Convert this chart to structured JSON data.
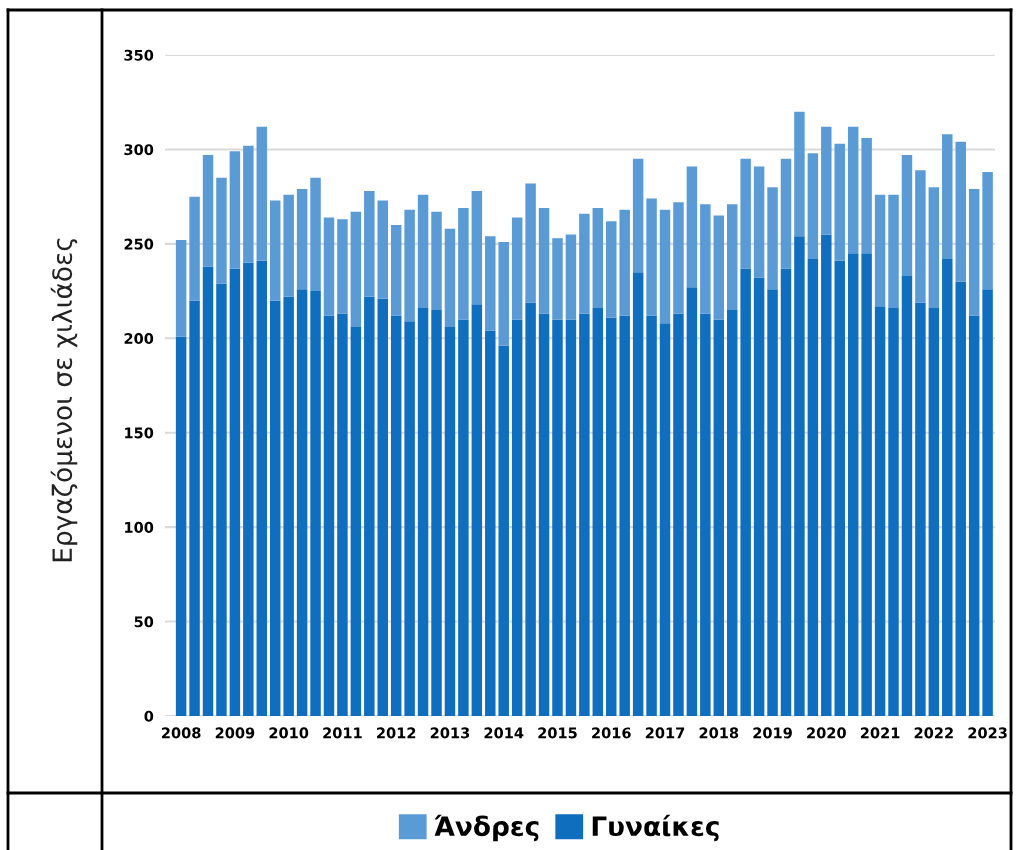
{
  "chart_data": {
    "type": "bar",
    "stacked": true,
    "ylabel": "Εργαζόμενοι σε χιλιάδες",
    "categories": [
      "2008",
      null,
      null,
      null,
      "2009",
      null,
      null,
      null,
      "2010",
      null,
      null,
      null,
      "2011",
      null,
      null,
      null,
      "2012",
      null,
      null,
      null,
      "2013",
      null,
      null,
      null,
      "2014",
      null,
      null,
      null,
      "2015",
      null,
      null,
      null,
      "2016",
      null,
      null,
      null,
      "2017",
      null,
      null,
      null,
      "2018",
      null,
      null,
      null,
      "2019",
      null,
      null,
      null,
      "2020",
      null,
      null,
      null,
      "2021",
      null,
      null,
      null,
      "2022",
      null,
      null,
      null,
      "2023"
    ],
    "series": [
      {
        "name": "Γυναίκες",
        "color": "#0f6fbe",
        "values": [
          201,
          220,
          238,
          229,
          237,
          240,
          241,
          220,
          222,
          226,
          225,
          212,
          213,
          206,
          222,
          221,
          212,
          209,
          216,
          215,
          206,
          210,
          218,
          204,
          196,
          210,
          219,
          213,
          210,
          210,
          213,
          216,
          211,
          212,
          235,
          212,
          208,
          213,
          227,
          213,
          210,
          215,
          237,
          232,
          226,
          237,
          254,
          242,
          255,
          241,
          245,
          245,
          217,
          216,
          233,
          219,
          216,
          242,
          230,
          212,
          226
        ]
      },
      {
        "name": "Άνδρες",
        "color": "#5b9bd5",
        "values": [
          51,
          55,
          59,
          56,
          62,
          62,
          71,
          53,
          54,
          53,
          60,
          52,
          50,
          61,
          56,
          52,
          48,
          59,
          60,
          52,
          52,
          59,
          60,
          50,
          55,
          54,
          63,
          56,
          43,
          45,
          53,
          53,
          51,
          56,
          60,
          62,
          60,
          59,
          64,
          58,
          55,
          56,
          58,
          59,
          54,
          58,
          66,
          56,
          57,
          62,
          67,
          61,
          59,
          60,
          64,
          70,
          64,
          66,
          74,
          67,
          62
        ]
      }
    ],
    "ylim": [
      0,
      350
    ],
    "yticks": [
      0,
      50,
      100,
      150,
      200,
      250,
      300,
      350
    ],
    "grid": "y",
    "legend": "bottom"
  }
}
